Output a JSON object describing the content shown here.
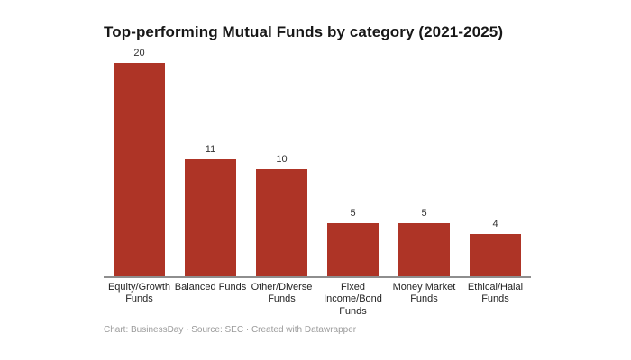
{
  "chart": {
    "title": "Top-performing Mutual Funds by category (2021-2025)"
  },
  "chart_data": {
    "type": "bar",
    "title": "Top-performing Mutual Funds by category (2021-2025)",
    "categories": [
      "Equity/Growth Funds",
      "Balanced Funds",
      "Other/Diverse Funds",
      "Fixed Income/Bond Funds",
      "Money Market Funds",
      "Ethical/Halal Funds"
    ],
    "values": [
      20,
      11,
      10,
      5,
      5,
      4
    ],
    "xlabel": "",
    "ylabel": "",
    "ylim": [
      0,
      20
    ],
    "grid": false,
    "legend": false,
    "value_labels_shown": true,
    "bar_color": "#ae3426"
  },
  "footer": {
    "text": "Chart: BusinessDay · Source: SEC · Created with Datawrapper"
  },
  "colors": {
    "bar": "#ae3426",
    "title": "#171717",
    "value_label": "#333333",
    "category_label": "#1f1f1f",
    "axis_line": "#8e8e8e",
    "footer": "#9b9b9b",
    "background": "#ffffff"
  }
}
